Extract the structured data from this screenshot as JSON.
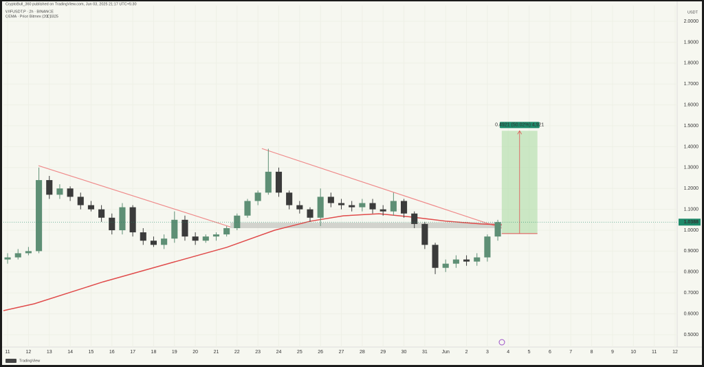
{
  "chart_data": {
    "type": "candlestick",
    "header": "CryptoBull_360 published on TradingView.com, Jun 03, 2025 21:17 UTC+5:30",
    "symbol": "WIFUSDT.P · 2h · BINANCE",
    "currency": "USDT",
    "footer": "TradingView",
    "up_color": "#5e8f75",
    "down_color": "#3b3b3b",
    "xlim": [
      -0.2,
      32.1
    ],
    "ylim": [
      0.4408,
      2.0757
    ],
    "xticks": [
      {
        "value": 0,
        "label": "11"
      },
      {
        "value": 1,
        "label": "12"
      },
      {
        "value": 2,
        "label": "13"
      },
      {
        "value": 3,
        "label": "14"
      },
      {
        "value": 4,
        "label": "15"
      },
      {
        "value": 5,
        "label": "16"
      },
      {
        "value": 6,
        "label": "17"
      },
      {
        "value": 7,
        "label": "18"
      },
      {
        "value": 8,
        "label": "19"
      },
      {
        "value": 9,
        "label": "20"
      },
      {
        "value": 10,
        "label": "21"
      },
      {
        "value": 11,
        "label": "22"
      },
      {
        "value": 12,
        "label": "23"
      },
      {
        "value": 13,
        "label": "24"
      },
      {
        "value": 14,
        "label": "25"
      },
      {
        "value": 15,
        "label": "26"
      },
      {
        "value": 16,
        "label": "27"
      },
      {
        "value": 17,
        "label": "28"
      },
      {
        "value": 18,
        "label": "29"
      },
      {
        "value": 19,
        "label": "30"
      },
      {
        "value": 20,
        "label": "31"
      },
      {
        "value": 21,
        "label": "Jun"
      },
      {
        "value": 22,
        "label": "2"
      },
      {
        "value": 23,
        "label": "3"
      },
      {
        "value": 24,
        "label": "4"
      },
      {
        "value": 25,
        "label": "5"
      },
      {
        "value": 26,
        "label": "6"
      },
      {
        "value": 27,
        "label": "7"
      },
      {
        "value": 28,
        "label": "8"
      },
      {
        "value": 29,
        "label": "9"
      },
      {
        "value": 30,
        "label": "10"
      },
      {
        "value": 31,
        "label": "11"
      },
      {
        "value": 32,
        "label": "12"
      }
    ],
    "yticks": [
      {
        "value": 0.5,
        "label": "0.5000"
      },
      {
        "value": 0.6,
        "label": "0.6000"
      },
      {
        "value": 0.7,
        "label": "0.7000"
      },
      {
        "value": 0.8,
        "label": "0.8000"
      },
      {
        "value": 0.9,
        "label": "0.9000"
      },
      {
        "value": 1.0,
        "label": "1.0000"
      },
      {
        "value": 1.1,
        "label": "1.1000"
      },
      {
        "value": 1.2,
        "label": "1.2000"
      },
      {
        "value": 1.3,
        "label": "1.3000"
      },
      {
        "value": 1.4,
        "label": "1.4000"
      },
      {
        "value": 1.5,
        "label": "1.5000"
      },
      {
        "value": 1.6,
        "label": "1.6000"
      },
      {
        "value": 1.7,
        "label": "1.7000"
      },
      {
        "value": 1.8,
        "label": "1.8000"
      },
      {
        "value": 1.9,
        "label": "1.9000"
      },
      {
        "value": 2.0,
        "label": "2.0000"
      }
    ],
    "x": [
      0,
      0.5,
      1,
      1.5,
      2,
      2.5,
      3,
      3.5,
      4,
      4.5,
      5,
      5.5,
      6,
      6.5,
      7,
      7.5,
      8,
      8.5,
      9,
      9.5,
      10,
      10.5,
      11,
      11.5,
      12,
      12.5,
      13,
      13.5,
      14,
      14.5,
      15,
      15.5,
      16,
      16.5,
      17,
      17.5,
      18,
      18.5,
      19,
      19.5,
      20,
      20.5,
      21,
      21.5,
      22,
      22.5,
      23,
      23.5
    ],
    "open": [
      0.86,
      0.87,
      0.89,
      0.9,
      1.24,
      1.17,
      1.2,
      1.16,
      1.12,
      1.1,
      1.06,
      1.0,
      1.11,
      0.99,
      0.95,
      0.93,
      0.96,
      1.05,
      0.97,
      0.95,
      0.97,
      0.98,
      1.01,
      1.07,
      1.14,
      1.18,
      1.28,
      1.18,
      1.12,
      1.1,
      1.06,
      1.16,
      1.13,
      1.12,
      1.11,
      1.13,
      1.1,
      1.09,
      1.14,
      1.08,
      1.03,
      0.93,
      0.82,
      0.84,
      0.86,
      0.85,
      0.87,
      0.97
    ],
    "high": [
      0.89,
      0.91,
      0.92,
      1.3,
      1.26,
      1.22,
      1.21,
      1.18,
      1.14,
      1.12,
      1.08,
      1.13,
      1.12,
      1.01,
      0.97,
      0.98,
      1.09,
      1.07,
      0.99,
      0.98,
      0.99,
      1.02,
      1.08,
      1.15,
      1.19,
      1.39,
      1.3,
      1.19,
      1.14,
      1.11,
      1.2,
      1.18,
      1.15,
      1.14,
      1.15,
      1.15,
      1.12,
      1.18,
      1.15,
      1.09,
      1.04,
      0.94,
      0.86,
      0.88,
      0.88,
      0.89,
      0.98,
      1.05
    ],
    "low": [
      0.84,
      0.86,
      0.88,
      0.89,
      1.15,
      1.15,
      1.14,
      1.1,
      1.09,
      1.04,
      0.98,
      0.98,
      0.97,
      0.93,
      0.92,
      0.91,
      0.94,
      0.95,
      0.93,
      0.94,
      0.95,
      0.97,
      1.0,
      1.06,
      1.12,
      1.17,
      1.16,
      1.1,
      1.08,
      1.04,
      1.02,
      1.11,
      1.1,
      1.09,
      1.09,
      1.08,
      1.07,
      1.07,
      1.06,
      1.01,
      0.91,
      0.79,
      0.8,
      0.82,
      0.83,
      0.83,
      0.85,
      0.95
    ],
    "close": [
      0.87,
      0.89,
      0.9,
      1.24,
      1.17,
      1.2,
      1.16,
      1.12,
      1.1,
      1.06,
      1.0,
      1.11,
      0.99,
      0.95,
      0.93,
      0.96,
      1.05,
      0.97,
      0.95,
      0.97,
      0.98,
      1.01,
      1.07,
      1.14,
      1.18,
      1.28,
      1.18,
      1.12,
      1.1,
      1.06,
      1.16,
      1.13,
      1.12,
      1.11,
      1.13,
      1.1,
      1.09,
      1.14,
      1.08,
      1.03,
      0.93,
      0.82,
      0.84,
      0.86,
      0.85,
      0.87,
      0.97,
      1.0388
    ],
    "last_price": 1.0388,
    "last_price_color": "#1e8a6a",
    "ema": {
      "name": "QEMA · Price Bitmex (200)",
      "last": 1.0325,
      "color": "#e04a4a",
      "x": [
        -0.2,
        1.28,
        4.58,
        7.87,
        10.5,
        12.8,
        14.5,
        16.1,
        17.8,
        19.4,
        21.05,
        22.7,
        23.69
      ],
      "values": [
        0.615,
        0.648,
        0.753,
        0.845,
        0.918,
        1.0,
        1.043,
        1.069,
        1.079,
        1.063,
        1.043,
        1.03,
        1.026
      ]
    },
    "trendlines": [
      {
        "color": "#ef8a8a",
        "x": [
          1.48,
          10.68
        ],
        "values": [
          1.309,
          1.016
        ]
      },
      {
        "color": "#ef8a8a",
        "x": [
          12.19,
          23.69
        ],
        "values": [
          1.391,
          1.01
        ]
      }
    ],
    "zone": {
      "color": "#c9c9c4",
      "x": [
        10.68,
        23.69
      ],
      "values": [
        1.01,
        1.036
      ]
    },
    "position": {
      "label": "0.4921 (50.02%) 4,921",
      "color": "#a8dba0",
      "x": [
        23.69,
        25.4
      ],
      "entry": 0.9838,
      "target": 1.4759
    }
  }
}
